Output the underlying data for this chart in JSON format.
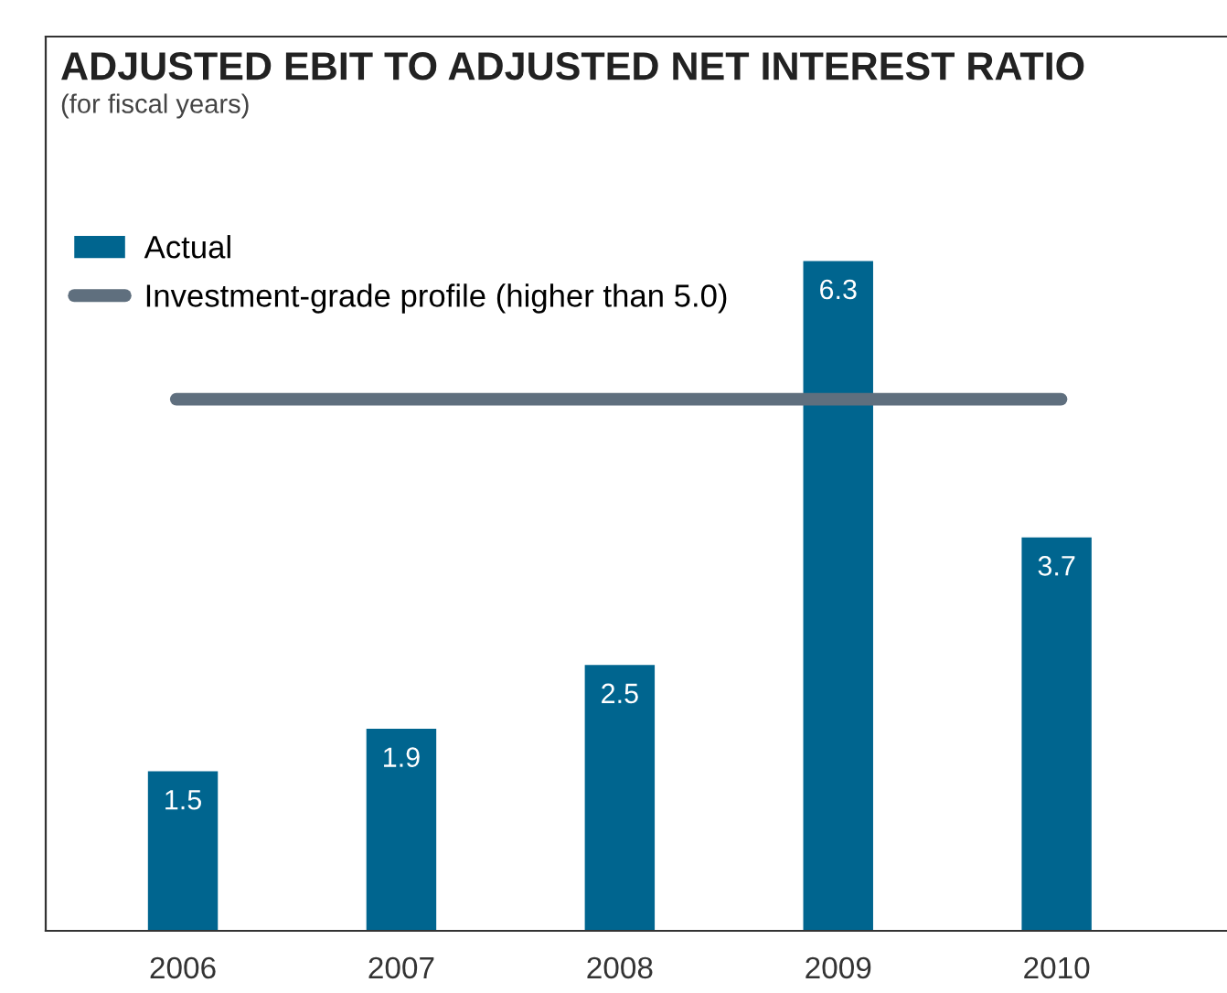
{
  "chart_data": {
    "type": "bar",
    "title": "ADJUSTED EBIT TO ADJUSTED NET INTEREST RATIO",
    "subtitle": "(for fiscal years)",
    "categories": [
      "2006",
      "2007",
      "2008",
      "2009",
      "2010"
    ],
    "series": [
      {
        "name": "Actual",
        "color": "#00658f",
        "values": [
          1.5,
          1.9,
          2.5,
          6.3,
          3.7
        ]
      }
    ],
    "ref_lines": [
      {
        "axis": "y",
        "value": 5.0,
        "label": "Investment-grade profile (higher than 5.0)",
        "color": "#5f6f7e"
      }
    ],
    "data_labels": true,
    "tick_labels": "x",
    "legend": "top left",
    "grid": false
  }
}
